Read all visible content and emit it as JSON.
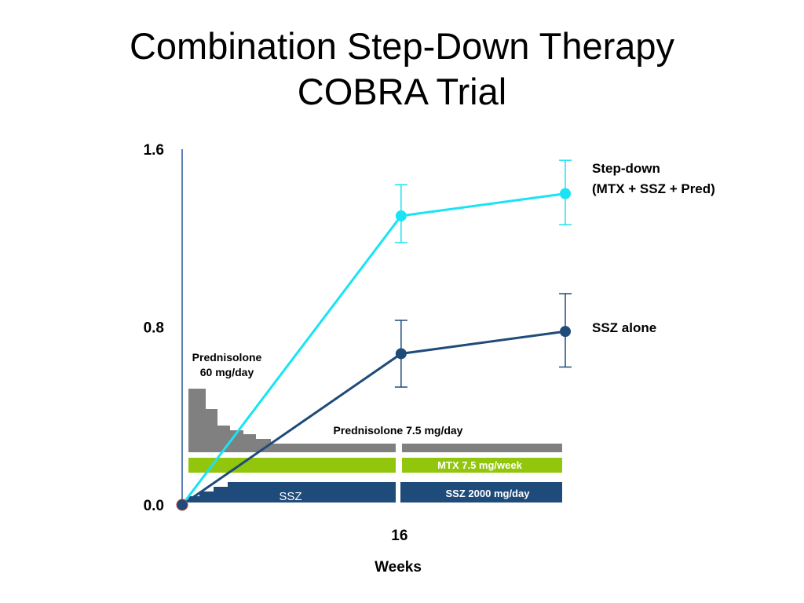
{
  "slide": {
    "title_line1": "Combination Step-Down Therapy",
    "title_line2": "COBRA Trial"
  },
  "colors": {
    "step_down": "#19e3f4",
    "ssz_alone": "#1f4b7a",
    "axis": "#5a7fb0",
    "prednisolone": "#808080",
    "mtx": "#92c60d",
    "ssz_bar": "#1f4b7a"
  },
  "chart_data": {
    "type": "line",
    "xlabel": "Weeks",
    "ylabel": "",
    "x_ticks": [
      {
        "value": 16,
        "label": "16"
      }
    ],
    "y_ticks": [
      {
        "value": 0.0,
        "label": "0.0"
      },
      {
        "value": 0.8,
        "label": "0.8"
      },
      {
        "value": 1.6,
        "label": "1.6"
      }
    ],
    "xlim": [
      0,
      28
    ],
    "ylim": [
      0,
      1.6
    ],
    "series": [
      {
        "name_lines": [
          "Step-down",
          "(MTX + SSZ + Pred)"
        ],
        "color": "#19e3f4",
        "points": [
          {
            "x": 0,
            "y": 0.0
          },
          {
            "x": 16,
            "y": 1.3,
            "err_low": 1.18,
            "err_high": 1.44
          },
          {
            "x": 28,
            "y": 1.4,
            "err_low": 1.26,
            "err_high": 1.55
          }
        ]
      },
      {
        "name_lines": [
          "SSZ alone"
        ],
        "color": "#1f4b7a",
        "points": [
          {
            "x": 0,
            "y": 0.0
          },
          {
            "x": 16,
            "y": 0.68,
            "err_low": 0.53,
            "err_high": 0.83
          },
          {
            "x": 28,
            "y": 0.78,
            "err_low": 0.62,
            "err_high": 0.95
          }
        ]
      }
    ],
    "annotations": {
      "prednisolone_start_lines": [
        "Prednisolone",
        "60 mg/day"
      ],
      "prednisolone_maint": "Prednisolone 7.5 mg/day",
      "mtx": "MTX 7.5 mg/week",
      "ssz_phase1": "SSZ",
      "ssz_phase2": "SSZ 2000 mg/day"
    }
  }
}
